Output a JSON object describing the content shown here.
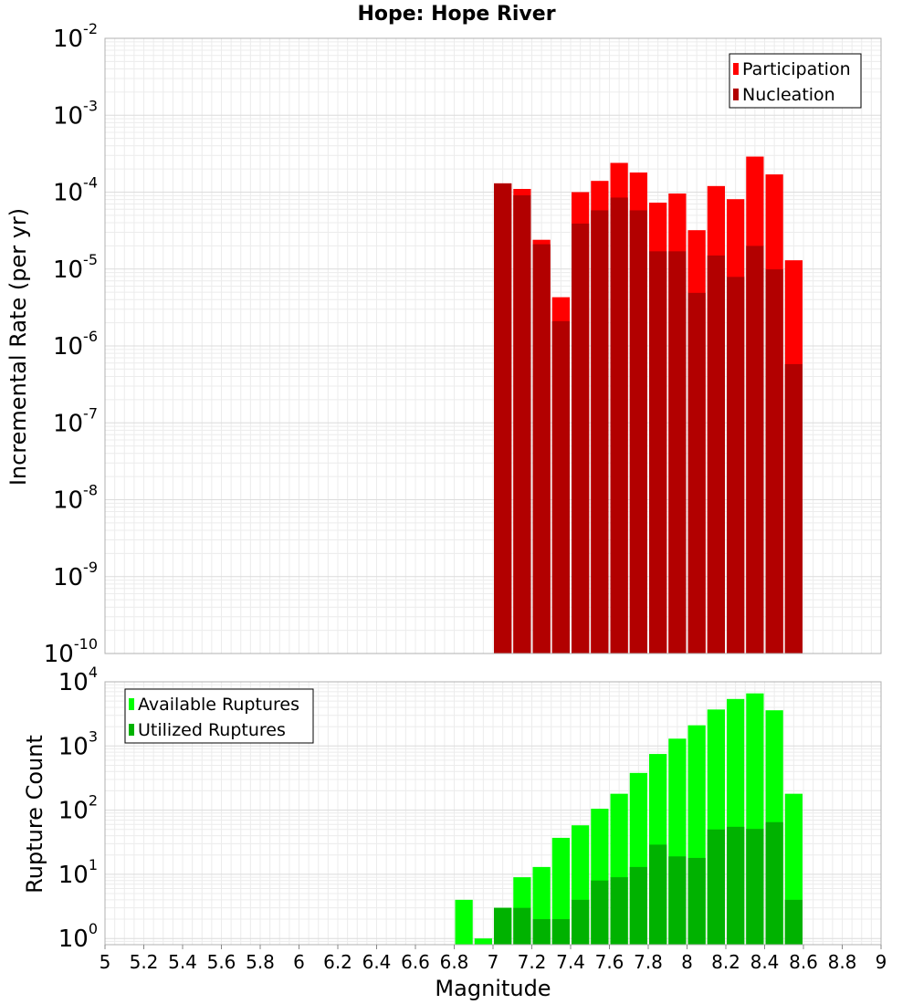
{
  "chart_data": [
    {
      "type": "bar",
      "title": "Hope: Hope River",
      "xlabel": "",
      "ylabel": "Incremental Rate (per yr)",
      "xlim": [
        5,
        9
      ],
      "ylim": [
        1e-10,
        0.01
      ],
      "yscale": "log",
      "grid": true,
      "legend_position": "top-right",
      "bin_width": 0.1,
      "bin_centers": [
        7.05,
        7.15,
        7.25,
        7.35,
        7.45,
        7.55,
        7.65,
        7.75,
        7.85,
        7.95,
        8.05,
        8.15,
        8.25,
        8.35,
        8.45,
        8.55
      ],
      "series": [
        {
          "name": "Participation",
          "color": "#ff0000",
          "values": [
            0.00013,
            0.00011,
            2.4e-05,
            4.3e-06,
            0.0001,
            0.00014,
            0.00024,
            0.00018,
            7.3e-05,
            9.6e-05,
            3.2e-05,
            0.00012,
            8.1e-05,
            0.00029,
            0.00017,
            1.3e-05
          ]
        },
        {
          "name": "Nucleation",
          "color": "#b20000",
          "values": [
            0.00013,
            9.1e-05,
            2.1e-05,
            2.1e-06,
            3.9e-05,
            5.8e-05,
            8.5e-05,
            5.8e-05,
            1.7e-05,
            1.7e-05,
            4.9e-06,
            1.5e-05,
            7.9e-06,
            2e-05,
            9.9e-06,
            5.8e-07
          ]
        }
      ],
      "y_ticks": [
        {
          "base": "10",
          "exp": "-10",
          "value": 1e-10
        },
        {
          "base": "10",
          "exp": "-9",
          "value": 1e-09
        },
        {
          "base": "10",
          "exp": "-8",
          "value": 1e-08
        },
        {
          "base": "10",
          "exp": "-7",
          "value": 1e-07
        },
        {
          "base": "10",
          "exp": "-6",
          "value": 1e-06
        },
        {
          "base": "10",
          "exp": "-5",
          "value": 1e-05
        },
        {
          "base": "10",
          "exp": "-4",
          "value": 0.0001
        },
        {
          "base": "10",
          "exp": "-3",
          "value": 0.001
        },
        {
          "base": "10",
          "exp": "-2",
          "value": 0.01
        }
      ]
    },
    {
      "type": "bar",
      "title": "",
      "xlabel": "Magnitude",
      "ylabel": "Rupture Count",
      "xlim": [
        5,
        9
      ],
      "ylim": [
        0.8,
        10000.0
      ],
      "yscale": "log",
      "grid": true,
      "legend_position": "top-left",
      "bin_width": 0.1,
      "bin_centers": [
        6.85,
        6.95,
        7.05,
        7.15,
        7.25,
        7.35,
        7.45,
        7.55,
        7.65,
        7.75,
        7.85,
        7.95,
        8.05,
        8.15,
        8.25,
        8.35,
        8.45,
        8.55
      ],
      "series": [
        {
          "name": "Available Ruptures",
          "color": "#00ff00",
          "values": [
            4,
            1,
            3,
            9,
            13,
            37,
            58,
            105,
            180,
            380,
            750,
            1300,
            2100,
            3700,
            5400,
            6600,
            3600,
            180
          ]
        },
        {
          "name": "Utilized Ruptures",
          "color": "#00b200",
          "values": [
            0,
            0,
            3,
            3,
            2,
            2,
            4,
            8,
            9,
            13,
            29,
            19,
            18,
            50,
            55,
            51,
            65,
            4
          ]
        }
      ],
      "y_ticks": [
        {
          "base": "10",
          "exp": "0",
          "value": 1
        },
        {
          "base": "10",
          "exp": "1",
          "value": 10
        },
        {
          "base": "10",
          "exp": "2",
          "value": 100
        },
        {
          "base": "10",
          "exp": "3",
          "value": 1000
        },
        {
          "base": "10",
          "exp": "4",
          "value": 10000
        }
      ],
      "x_ticks": [
        "5",
        "5.2",
        "5.4",
        "5.6",
        "5.8",
        "6",
        "6.2",
        "6.4",
        "6.6",
        "6.8",
        "7",
        "7.2",
        "7.4",
        "7.6",
        "7.8",
        "8",
        "8.2",
        "8.4",
        "8.6",
        "8.8",
        "9"
      ]
    }
  ]
}
